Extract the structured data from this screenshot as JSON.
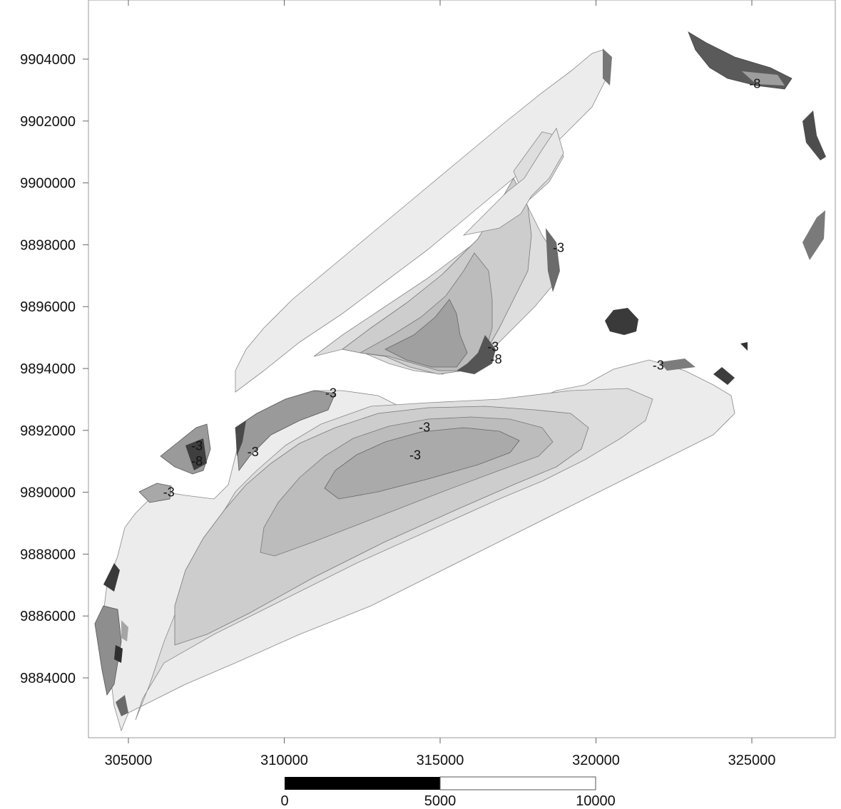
{
  "map": {
    "x_axis": {
      "ticks": [
        {
          "value": 305000,
          "label": "305000"
        },
        {
          "value": 310000,
          "label": "310000"
        },
        {
          "value": 315000,
          "label": "315000"
        },
        {
          "value": 320000,
          "label": "320000"
        },
        {
          "value": 325000,
          "label": "325000"
        }
      ]
    },
    "y_axis": {
      "ticks": [
        {
          "value": 9904000,
          "label": "9904000"
        },
        {
          "value": 9902000,
          "label": "9902000"
        },
        {
          "value": 9900000,
          "label": "9900000"
        },
        {
          "value": 9898000,
          "label": "9898000"
        },
        {
          "value": 9896000,
          "label": "9896000"
        },
        {
          "value": 9894000,
          "label": "9894000"
        },
        {
          "value": 9892000,
          "label": "9892000"
        },
        {
          "value": 9890000,
          "label": "9890000"
        },
        {
          "value": 9888000,
          "label": "9888000"
        },
        {
          "value": 9886000,
          "label": "9886000"
        },
        {
          "value": 9884000,
          "label": "9884000"
        }
      ]
    },
    "contour_labels": [
      {
        "text": "-3",
        "x": 311500,
        "y": 9893200
      },
      {
        "text": "-3",
        "x": 314500,
        "y": 9892100
      },
      {
        "text": "-3",
        "x": 314200,
        "y": 9891200
      },
      {
        "text": "-3",
        "x": 309000,
        "y": 9891300
      },
      {
        "text": "-3",
        "x": 307200,
        "y": 9891500
      },
      {
        "text": "-8",
        "x": 307200,
        "y": 9891000
      },
      {
        "text": "-3",
        "x": 306300,
        "y": 9890000
      },
      {
        "text": "-3",
        "x": 316700,
        "y": 9894700
      },
      {
        "text": "-8",
        "x": 316800,
        "y": 9894300
      },
      {
        "text": "-3",
        "x": 318800,
        "y": 9897900
      },
      {
        "text": "-3",
        "x": 322000,
        "y": 9894100
      },
      {
        "text": "-8",
        "x": 325100,
        "y": 9903200
      }
    ],
    "colors": {
      "lightest": "#ececec",
      "light": "#dddddd",
      "mid": "#cccccc",
      "dark": "#b5b5b5",
      "darker": "#8e8e8e",
      "darkest": "#3a3a3a"
    }
  },
  "scale_bar": {
    "labels": [
      {
        "value": 0,
        "label": "0"
      },
      {
        "value": 5000,
        "label": "5000"
      },
      {
        "value": 10000,
        "label": "10000"
      }
    ]
  }
}
